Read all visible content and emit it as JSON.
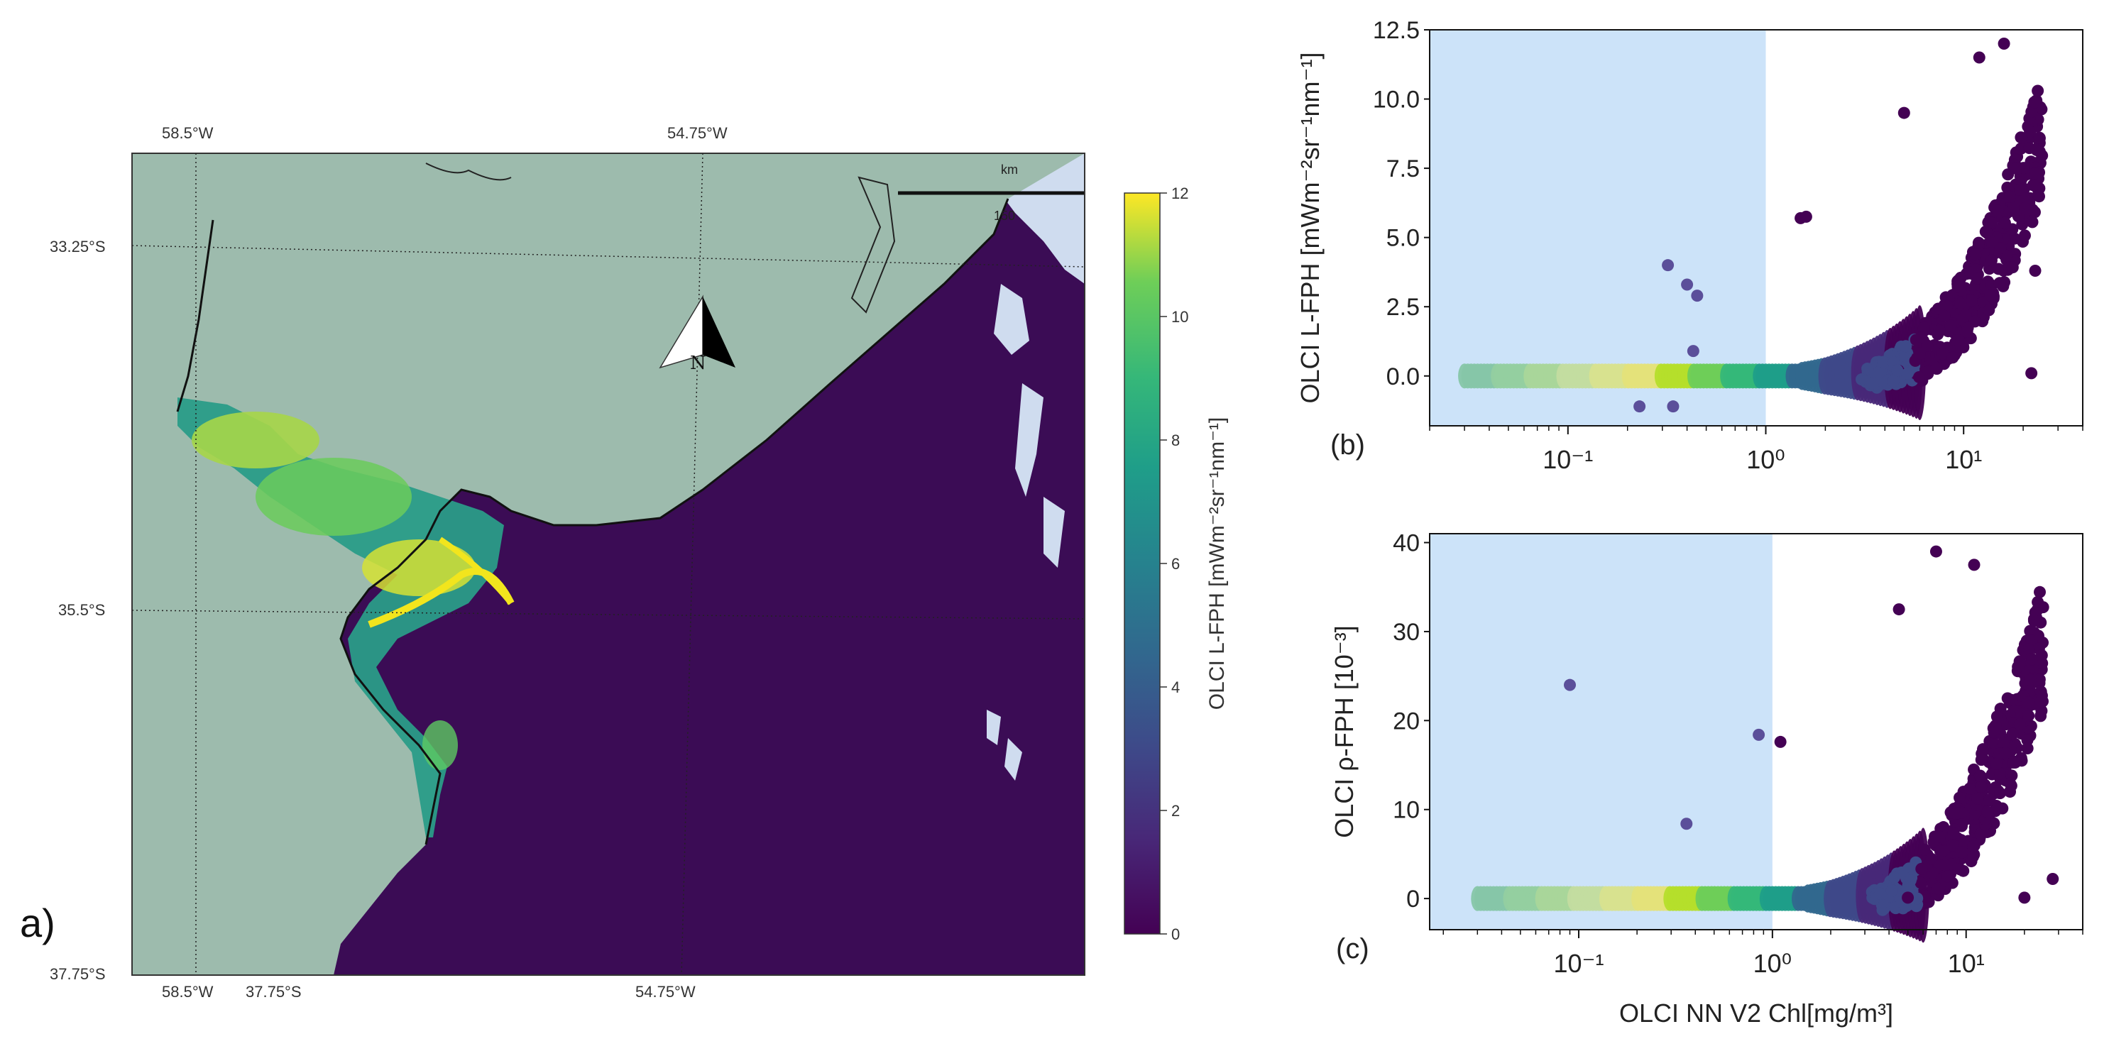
{
  "panel_a": {
    "panel_label": "a)",
    "top_labels": [
      "58.5°W",
      "54.75°W"
    ],
    "bottom_labels": [
      "58.5°W",
      "37.75°S",
      "54.75°W"
    ],
    "left_labels": [
      "33.25°S",
      "35.5°S",
      "37.75°S"
    ],
    "right_labels": [
      "33.2",
      "35.5"
    ],
    "scale_bar": {
      "unit": "km",
      "value": "150"
    },
    "north_arrow": "N",
    "colorbar": {
      "label": "OLCI L-FPH [mWm⁻²sr⁻¹nm⁻¹]",
      "ticks": [
        "0",
        "2",
        "4",
        "6",
        "8",
        "10",
        "12"
      ],
      "colormap": "viridis",
      "range": [
        0,
        12
      ]
    },
    "colors": {
      "land": "#9dbbad",
      "ocean": "#3b0c55",
      "cloud": "#cfdcef"
    }
  },
  "chart_data": [
    {
      "panel": "b",
      "type": "scatter",
      "panel_label": "(b)",
      "xlabel": "",
      "ylabel": "OLCI L-FPH [mWm⁻²sr⁻¹nm⁻¹]",
      "xscale": "log",
      "xlim": [
        0.02,
        40
      ],
      "ylim": [
        -1.8,
        12.5
      ],
      "yticks": [
        "0.0",
        "2.5",
        "5.0",
        "7.5",
        "10.0",
        "12.5"
      ],
      "xticks": [
        "10⁻¹",
        "10⁰",
        "10¹"
      ],
      "shaded_region": {
        "x": [
          0.02,
          1.0
        ],
        "color": "#cce3f9"
      },
      "color": "point density (viridis)",
      "outliers": [
        {
          "x": 0.32,
          "y": 4.0
        },
        {
          "x": 0.4,
          "y": 3.3
        },
        {
          "x": 0.45,
          "y": 2.9
        },
        {
          "x": 0.43,
          "y": 0.9
        },
        {
          "x": 0.23,
          "y": -1.1
        },
        {
          "x": 0.34,
          "y": -1.1
        },
        {
          "x": 1.5,
          "y": 5.7
        },
        {
          "x": 1.6,
          "y": 5.75
        },
        {
          "x": 5.0,
          "y": 9.5
        },
        {
          "x": 23,
          "y": 3.8
        },
        {
          "x": 22,
          "y": 0.1
        },
        {
          "x": 16,
          "y": 12.0
        },
        {
          "x": 12,
          "y": 11.5
        }
      ]
    },
    {
      "panel": "c",
      "type": "scatter",
      "panel_label": "(c)",
      "xlabel": "OLCI NN V2 Chl[mg/m³]",
      "ylabel": "OLCI ρ-FPH [10⁻³]",
      "xscale": "log",
      "xlim": [
        0.017,
        40
      ],
      "ylim": [
        -3.5,
        41
      ],
      "yticks": [
        "0",
        "10",
        "20",
        "30",
        "40"
      ],
      "xticks": [
        "10⁻¹",
        "10⁰",
        "10¹"
      ],
      "shaded_region": {
        "x": [
          0.017,
          1.0
        ],
        "color": "#cce3f9"
      },
      "color": "point density (viridis)",
      "outliers": [
        {
          "x": 0.09,
          "y": 24
        },
        {
          "x": 0.85,
          "y": 18.4
        },
        {
          "x": 1.1,
          "y": 17.6
        },
        {
          "x": 0.36,
          "y": 8.4
        },
        {
          "x": 7,
          "y": 39
        },
        {
          "x": 11,
          "y": 37.5
        },
        {
          "x": 4.5,
          "y": 32.5
        },
        {
          "x": 28,
          "y": 2.2
        },
        {
          "x": 20,
          "y": 0.1
        },
        {
          "x": 5,
          "y": 0.1
        }
      ]
    }
  ]
}
